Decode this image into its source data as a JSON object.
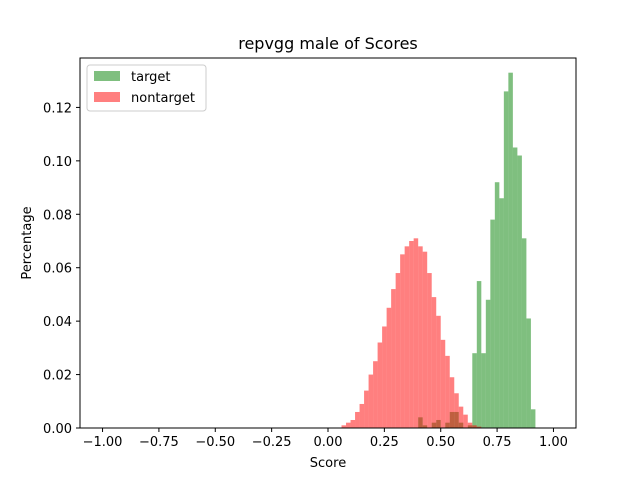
{
  "chart_data": {
    "type": "bar",
    "title": "repvgg male of Scores",
    "xlabel": "Score",
    "ylabel": "Percentage",
    "xlim": [
      -1.1,
      1.1
    ],
    "ylim": [
      0.0,
      0.1385
    ],
    "bin_width": 0.02,
    "xticks": [
      -1.0,
      -0.75,
      -0.5,
      -0.25,
      0.0,
      0.25,
      0.5,
      0.75,
      1.0
    ],
    "xtick_labels": [
      "−1.00",
      "−0.75",
      "−0.50",
      "−0.25",
      "0.00",
      "0.25",
      "0.50",
      "0.75",
      "1.00"
    ],
    "yticks": [
      0.0,
      0.02,
      0.04,
      0.06,
      0.08,
      0.1,
      0.12
    ],
    "ytick_labels": [
      "0.00",
      "0.02",
      "0.04",
      "0.06",
      "0.08",
      "0.10",
      "0.12"
    ],
    "grid": false,
    "legend_position": "top-left",
    "series": [
      {
        "name": "target",
        "color": "#008000",
        "alpha": 0.5,
        "bins": [
          {
            "x": 0.4,
            "y": 0.004
          },
          {
            "x": 0.42,
            "y": 0.001
          },
          {
            "x": 0.46,
            "y": 0.002
          },
          {
            "x": 0.48,
            "y": 0.003
          },
          {
            "x": 0.52,
            "y": 0.002
          },
          {
            "x": 0.54,
            "y": 0.006
          },
          {
            "x": 0.56,
            "y": 0.006
          },
          {
            "x": 0.58,
            "y": 0.002
          },
          {
            "x": 0.62,
            "y": 0.001
          },
          {
            "x": 0.64,
            "y": 0.028
          },
          {
            "x": 0.66,
            "y": 0.055
          },
          {
            "x": 0.68,
            "y": 0.028
          },
          {
            "x": 0.7,
            "y": 0.048
          },
          {
            "x": 0.72,
            "y": 0.078
          },
          {
            "x": 0.74,
            "y": 0.092
          },
          {
            "x": 0.76,
            "y": 0.086
          },
          {
            "x": 0.78,
            "y": 0.126
          },
          {
            "x": 0.8,
            "y": 0.133
          },
          {
            "x": 0.82,
            "y": 0.105
          },
          {
            "x": 0.84,
            "y": 0.102
          },
          {
            "x": 0.86,
            "y": 0.071
          },
          {
            "x": 0.88,
            "y": 0.041
          },
          {
            "x": 0.9,
            "y": 0.007
          }
        ]
      },
      {
        "name": "nontarget",
        "color": "#ff0000",
        "alpha": 0.5,
        "bins": [
          {
            "x": 0.06,
            "y": 0.001
          },
          {
            "x": 0.08,
            "y": 0.002
          },
          {
            "x": 0.1,
            "y": 0.003
          },
          {
            "x": 0.12,
            "y": 0.006
          },
          {
            "x": 0.14,
            "y": 0.009
          },
          {
            "x": 0.16,
            "y": 0.014
          },
          {
            "x": 0.18,
            "y": 0.02
          },
          {
            "x": 0.2,
            "y": 0.025
          },
          {
            "x": 0.22,
            "y": 0.032
          },
          {
            "x": 0.24,
            "y": 0.038
          },
          {
            "x": 0.26,
            "y": 0.045
          },
          {
            "x": 0.28,
            "y": 0.052
          },
          {
            "x": 0.3,
            "y": 0.058
          },
          {
            "x": 0.32,
            "y": 0.065
          },
          {
            "x": 0.34,
            "y": 0.068
          },
          {
            "x": 0.36,
            "y": 0.07
          },
          {
            "x": 0.38,
            "y": 0.071
          },
          {
            "x": 0.4,
            "y": 0.068
          },
          {
            "x": 0.42,
            "y": 0.066
          },
          {
            "x": 0.44,
            "y": 0.058
          },
          {
            "x": 0.46,
            "y": 0.049
          },
          {
            "x": 0.48,
            "y": 0.042
          },
          {
            "x": 0.5,
            "y": 0.033
          },
          {
            "x": 0.52,
            "y": 0.027
          },
          {
            "x": 0.54,
            "y": 0.019
          },
          {
            "x": 0.56,
            "y": 0.013
          },
          {
            "x": 0.58,
            "y": 0.008
          },
          {
            "x": 0.6,
            "y": 0.005
          },
          {
            "x": 0.62,
            "y": 0.002
          },
          {
            "x": 0.64,
            "y": 0.001
          },
          {
            "x": 0.66,
            "y": 0.0005
          }
        ]
      }
    ]
  }
}
